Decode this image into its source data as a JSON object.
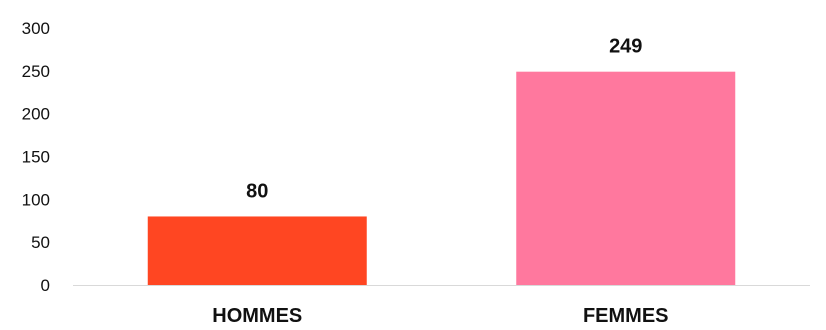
{
  "chart_data": {
    "type": "bar",
    "categories": [
      "HOMMES",
      "FEMMES"
    ],
    "values": [
      80,
      249
    ],
    "data_labels": [
      "80",
      "249"
    ],
    "bar_colors": [
      "#ff4622",
      "#ff789e"
    ],
    "title": "",
    "xlabel": "",
    "ylabel": "",
    "ylim": [
      0,
      300
    ],
    "yticks": [
      0,
      50,
      100,
      150,
      200,
      250,
      300
    ],
    "ytick_labels": [
      "0",
      "50",
      "100",
      "150",
      "200",
      "250",
      "300"
    ],
    "grid": false,
    "legend": "none",
    "axis_color": "#d9d9d9"
  }
}
